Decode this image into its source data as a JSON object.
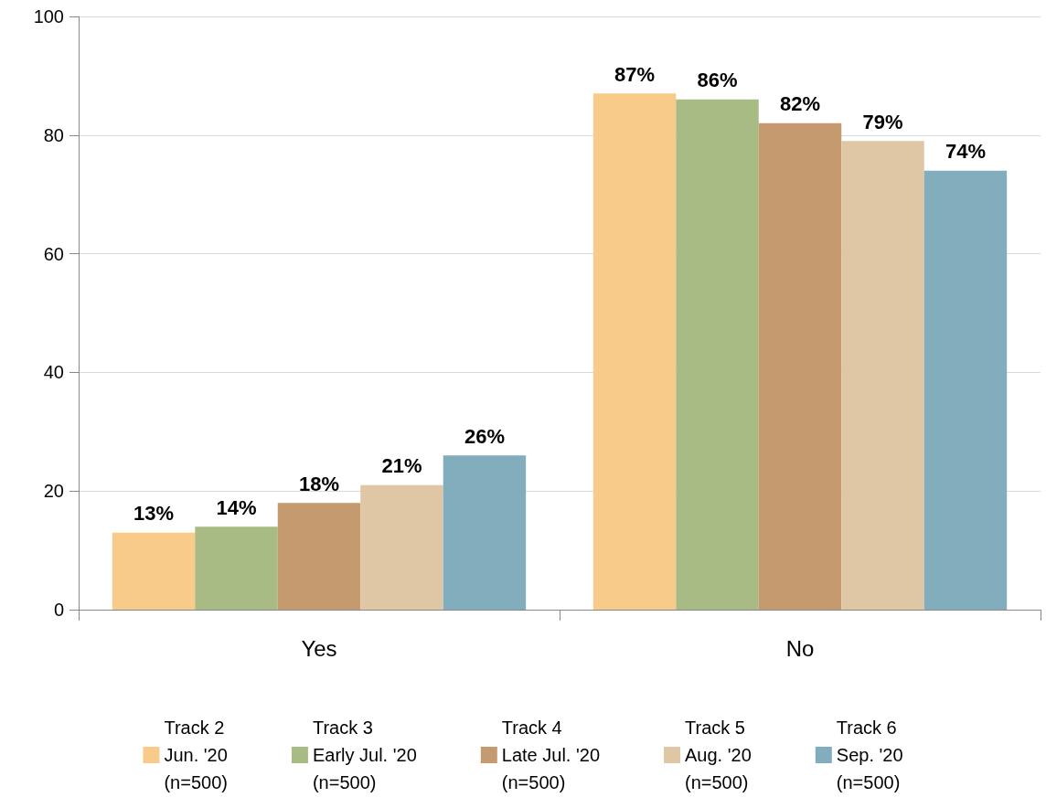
{
  "chart_data": {
    "type": "bar",
    "categories": [
      "Yes",
      "No"
    ],
    "series": [
      {
        "name": "Track 2\nJun. '20\n(n=500)",
        "color": "#f9cb8b",
        "values": [
          13,
          87
        ],
        "value_labels": [
          "13%",
          "87%"
        ]
      },
      {
        "name": "Track 3\nEarly Jul. '20\n(n=500)",
        "color": "#a9bb84",
        "values": [
          14,
          86
        ],
        "value_labels": [
          "14%",
          "86%"
        ]
      },
      {
        "name": "Track 4\nLate Jul. '20\n(n=500)",
        "color": "#c49a6e",
        "values": [
          18,
          82
        ],
        "value_labels": [
          "18%",
          "82%"
        ]
      },
      {
        "name": "Track 5\nAug. '20\n(n=500)",
        "color": "#dfc6a4",
        "values": [
          21,
          79
        ],
        "value_labels": [
          "21%",
          "79%"
        ]
      },
      {
        "name": "Track 6\nSep. '20\n(n=500)",
        "color": "#81adbd",
        "values": [
          26,
          74
        ],
        "value_labels": [
          "26%",
          "74%"
        ]
      }
    ],
    "ylim": [
      0,
      100
    ],
    "yticks": [
      0,
      20,
      40,
      60,
      80,
      100
    ],
    "grid": "y",
    "legend": "bottom"
  }
}
